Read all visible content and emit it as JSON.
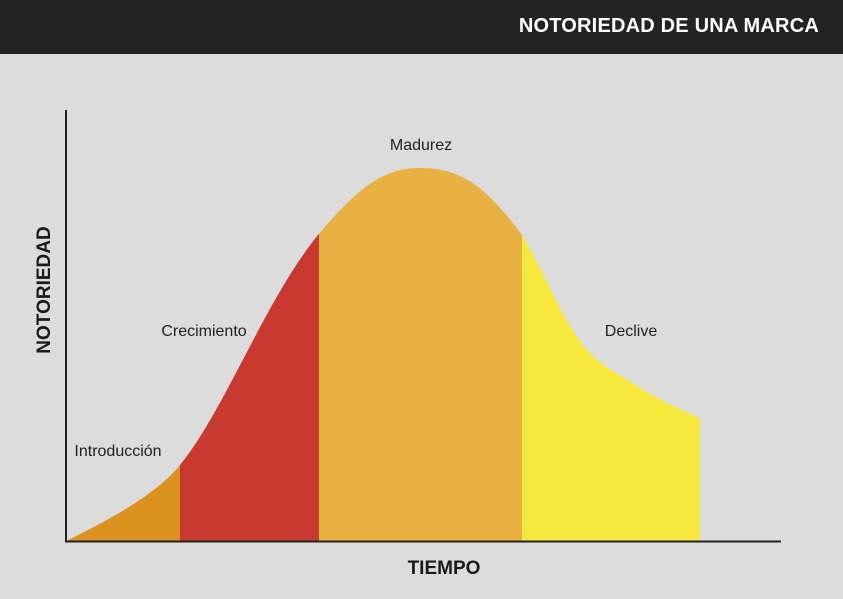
{
  "header": {
    "title": "NOTORIEDAD DE UNA MARCA"
  },
  "chart_data": {
    "type": "area",
    "title": "NOTORIEDAD DE UNA MARCA",
    "xlabel": "TIEMPO",
    "ylabel": "NOTORIEDAD",
    "grid": false,
    "axis_ticks": false,
    "stages": [
      {
        "name": "Introducción",
        "color": "#db921e"
      },
      {
        "name": "Crecimiento",
        "color": "#c8392f"
      },
      {
        "name": "Madurez",
        "color": "#e8b142"
      },
      {
        "name": "Declive",
        "color": "#f7e83e"
      }
    ]
  }
}
